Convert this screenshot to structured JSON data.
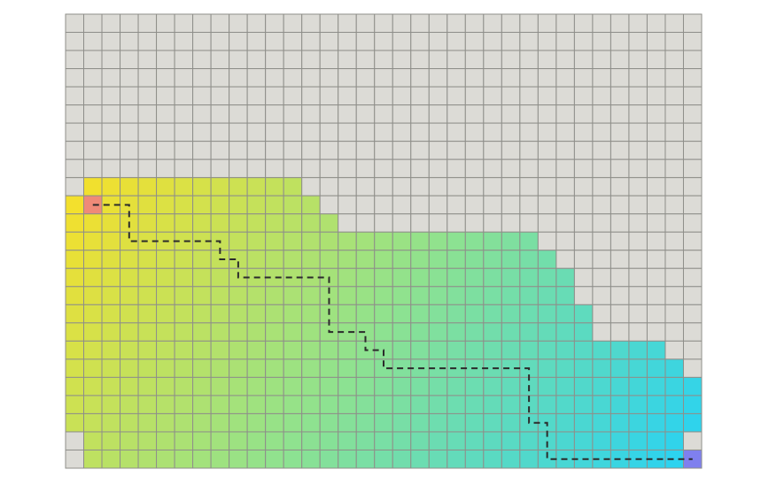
{
  "grid": {
    "cols": 35,
    "rows": 25,
    "colors": {
      "unvisited": "#dcdbd6",
      "grid_line": "#8f8f8a",
      "start": "#ef8a78",
      "goal": "#7f80ee",
      "gradient_start": "#f6e02a",
      "gradient_mid": "#8fe28f",
      "gradient_end": "#28d2f3",
      "path": "#2b2b2b"
    },
    "explored_rows": [
      {
        "row": 9,
        "from": 1,
        "to": 12
      },
      {
        "row": 10,
        "from": 0,
        "to": 13
      },
      {
        "row": 11,
        "from": 0,
        "to": 14
      },
      {
        "row": 12,
        "from": 0,
        "to": 25
      },
      {
        "row": 13,
        "from": 0,
        "to": 26
      },
      {
        "row": 14,
        "from": 0,
        "to": 27
      },
      {
        "row": 15,
        "from": 0,
        "to": 27
      },
      {
        "row": 16,
        "from": 0,
        "to": 28
      },
      {
        "row": 17,
        "from": 0,
        "to": 28
      },
      {
        "row": 18,
        "from": 0,
        "to": 32
      },
      {
        "row": 19,
        "from": 0,
        "to": 33
      },
      {
        "row": 20,
        "from": 0,
        "to": 34
      },
      {
        "row": 21,
        "from": 0,
        "to": 34
      },
      {
        "row": 22,
        "from": 0,
        "to": 34
      },
      {
        "row": 23,
        "from": 1,
        "to": 33
      },
      {
        "row": 24,
        "from": 1,
        "to": 34
      }
    ],
    "start_cell": [
      1,
      10
    ],
    "goal_cell": [
      34,
      24
    ],
    "path": [
      [
        1,
        10
      ],
      [
        2,
        10
      ],
      [
        3,
        10
      ],
      [
        3,
        11
      ],
      [
        3,
        12
      ],
      [
        4,
        12
      ],
      [
        5,
        12
      ],
      [
        6,
        12
      ],
      [
        7,
        12
      ],
      [
        8,
        12
      ],
      [
        8,
        13
      ],
      [
        9,
        13
      ],
      [
        9,
        14
      ],
      [
        10,
        14
      ],
      [
        11,
        14
      ],
      [
        12,
        14
      ],
      [
        13,
        14
      ],
      [
        14,
        14
      ],
      [
        14,
        15
      ],
      [
        14,
        16
      ],
      [
        14,
        17
      ],
      [
        15,
        17
      ],
      [
        16,
        17
      ],
      [
        16,
        18
      ],
      [
        17,
        18
      ],
      [
        17,
        19
      ],
      [
        18,
        19
      ],
      [
        19,
        19
      ],
      [
        20,
        19
      ],
      [
        21,
        19
      ],
      [
        22,
        19
      ],
      [
        23,
        19
      ],
      [
        24,
        19
      ],
      [
        25,
        19
      ],
      [
        25,
        20
      ],
      [
        25,
        21
      ],
      [
        25,
        22
      ],
      [
        26,
        22
      ],
      [
        26,
        23
      ],
      [
        26,
        24
      ],
      [
        27,
        24
      ],
      [
        28,
        24
      ],
      [
        29,
        24
      ],
      [
        30,
        24
      ],
      [
        31,
        24
      ],
      [
        32,
        24
      ],
      [
        33,
        24
      ],
      [
        34,
        24
      ]
    ]
  }
}
